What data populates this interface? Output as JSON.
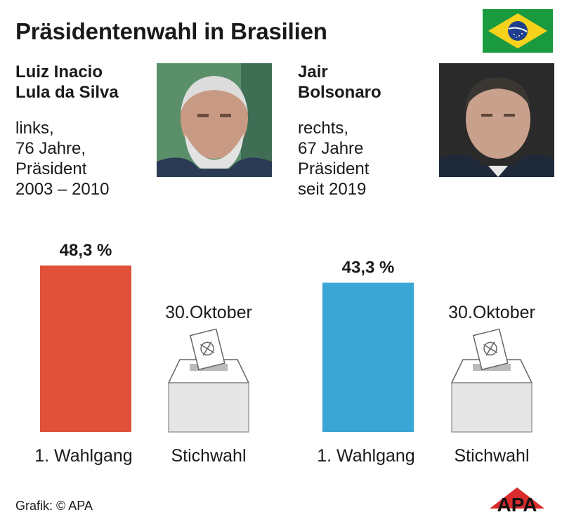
{
  "header": {
    "title": "Präsidentenwahl in Brasilien"
  },
  "candidates": [
    {
      "name_line1": "Luiz Inacio",
      "name_line2": "Lula da Silva",
      "info": [
        "links,",
        "76 Jahre,",
        "Präsident",
        "2003 – 2010"
      ]
    },
    {
      "name_line1": "Jair",
      "name_line2": "Bolsonaro",
      "info": [
        "rechts,",
        "67 Jahre",
        "Präsident",
        "seit 2019"
      ]
    }
  ],
  "chart_data": {
    "type": "bar",
    "series": [
      {
        "name": "Luiz Inacio Lula da Silva",
        "categories": [
          "1. Wahlgang",
          "Stichwahl"
        ],
        "values": [
          48.3,
          null
        ],
        "value_labels": [
          "48,3 %",
          ""
        ],
        "color": "#e0513a"
      },
      {
        "name": "Jair Bolsonaro",
        "categories": [
          "1. Wahlgang",
          "Stichwahl"
        ],
        "values": [
          43.3,
          null
        ],
        "value_labels": [
          "43,3 %",
          ""
        ],
        "color": "#3aa6d6"
      }
    ],
    "runoff_date": "30.Oktober",
    "ylim": [
      0,
      60
    ],
    "title": "",
    "xlabel": "",
    "ylabel": ""
  },
  "footer": {
    "credit": "Grafik: © APA",
    "logo_text": "APA"
  },
  "colors": {
    "lula": "#e0513a",
    "bolsonaro": "#3aa6d6",
    "box": "#e6e6e6",
    "flag_green": "#1a9a3e",
    "flag_yellow": "#f6d21c",
    "flag_blue": "#1d3f8e"
  }
}
